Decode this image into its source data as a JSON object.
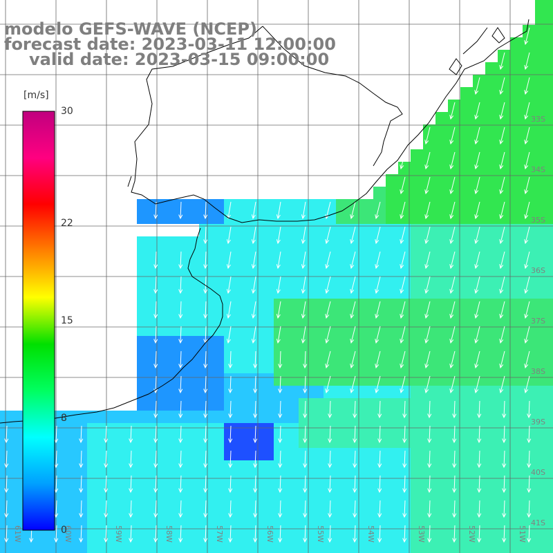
{
  "title": {
    "model": "modelo GEFS-WAVE (NCEP)",
    "forecast": "forecast date: 2023-03-11 12:00:00",
    "valid": "valid date: 2023-03-15 09:00:00"
  },
  "colorbar": {
    "unit": "[m/s]",
    "ticks": [
      "30",
      "22",
      "15",
      "8",
      "0"
    ],
    "tick_values": [
      30,
      22,
      15,
      8,
      0
    ],
    "range": [
      0,
      30
    ],
    "colors": [
      "#0000ff",
      "#00a0ff",
      "#00ffff",
      "#00ff60",
      "#00e000",
      "#ffff00",
      "#ff8000",
      "#ff0000",
      "#ff0080",
      "#c0007f"
    ]
  },
  "map": {
    "lat_labels": [
      "33S",
      "34S",
      "35S",
      "36S",
      "37S",
      "38S",
      "39S",
      "40S",
      "41S"
    ],
    "lon_labels": [
      "61W",
      "60W",
      "59W",
      "58W",
      "57W",
      "56W",
      "55W",
      "54W",
      "53W",
      "52W",
      "51W"
    ],
    "field_colors": {
      "deep_blue": "#1e50ff",
      "mid_blue": "#1e96ff",
      "light_blue": "#28c8ff",
      "cyan": "#32f0f0",
      "aqua_green": "#3cf0b4",
      "green": "#3ce678",
      "bright_green": "#32e650"
    },
    "arrow_color": "#ffffff",
    "coast_color": "#000000",
    "grid_color": "#666666"
  }
}
